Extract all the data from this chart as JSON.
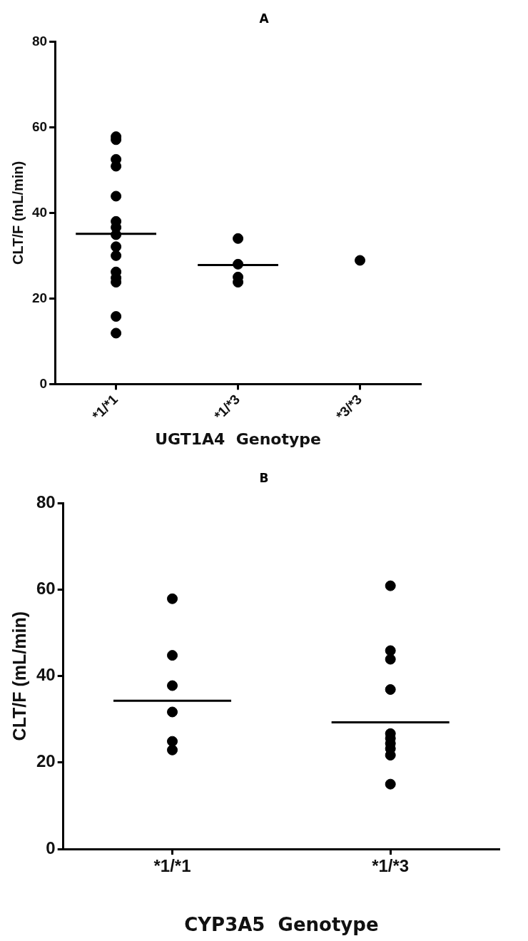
{
  "chart_data": [
    {
      "type": "scatter",
      "title": "A",
      "xlabel": "UGT1A4  Genotype",
      "ylabel": "CLT/F (mL/min)",
      "categories": [
        "*1/*1",
        "*1/*3",
        "*3/*3"
      ],
      "ylim": [
        0,
        80
      ],
      "yticks": [
        0,
        20,
        40,
        60,
        80
      ],
      "grid": false,
      "legend": false,
      "marker": "circle",
      "series": [
        {
          "color": "#000000",
          "x": [
            "*1/*1",
            "*1/*1",
            "*1/*1",
            "*1/*1",
            "*1/*1",
            "*1/*1",
            "*1/*1",
            "*1/*1",
            "*1/*1",
            "*1/*1",
            "*1/*1",
            "*1/*1",
            "*1/*1",
            "*1/*1",
            "*1/*1",
            "*1/*3",
            "*1/*3",
            "*1/*3",
            "*1/*3",
            "*3/*3"
          ],
          "values": [
            57.8,
            57.1,
            52.5,
            50.9,
            43.9,
            38.0,
            36.6,
            34.9,
            32.1,
            30.0,
            26.2,
            24.8,
            23.8,
            15.8,
            11.9,
            34.0,
            28.0,
            25.0,
            23.8,
            28.9
          ]
        }
      ],
      "ref_lines": [
        {
          "axis": "y",
          "value": 35.1,
          "color": "#000000"
        },
        {
          "axis": "y",
          "value": 27.8,
          "color": "#000000"
        }
      ]
    },
    {
      "type": "scatter",
      "title": "B",
      "xlabel": "CYP3A5  Genotype",
      "ylabel": "CLT/F (mL/min)",
      "categories": [
        "*1/*1",
        "*1/*3"
      ],
      "ylim": [
        0,
        80
      ],
      "yticks": [
        0,
        20,
        40,
        60,
        80
      ],
      "grid": false,
      "legend": false,
      "marker": "circle",
      "series": [
        {
          "color": "#000000",
          "x": [
            "*1/*1",
            "*1/*1",
            "*1/*1",
            "*1/*1",
            "*1/*1",
            "*1/*1",
            "*1/*3",
            "*1/*3",
            "*1/*3",
            "*1/*3",
            "*1/*3",
            "*1/*3",
            "*1/*3",
            "*1/*3",
            "*1/*3",
            "*1/*3"
          ],
          "values": [
            57.9,
            44.8,
            37.8,
            31.7,
            24.9,
            22.9,
            60.9,
            45.9,
            43.9,
            36.9,
            26.7,
            25.6,
            24.4,
            23.2,
            21.7,
            15.0
          ]
        }
      ],
      "ref_lines": [
        {
          "axis": "y",
          "value": 34.3,
          "color": "#000000"
        },
        {
          "axis": "y",
          "value": 29.3,
          "color": "#000000"
        }
      ]
    }
  ]
}
